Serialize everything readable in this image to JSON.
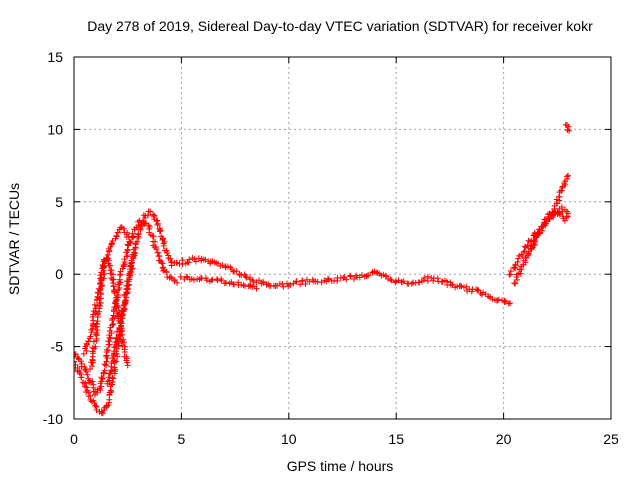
{
  "chart_data": {
    "type": "scatter",
    "title": "Day 278 of 2019, Sidereal Day-to-day VTEC variation (SDTVAR) for receiver kokr",
    "xlabel": "GPS time / hours",
    "ylabel": "SDTVAR / TECUs",
    "xlim": [
      0,
      25
    ],
    "ylim": [
      -10,
      15
    ],
    "xticks": [
      0,
      5,
      10,
      15,
      20,
      25
    ],
    "yticks": [
      -10,
      -5,
      0,
      5,
      10,
      15
    ],
    "grid": true,
    "marker": "+",
    "series": [
      {
        "name": "SDTVAR",
        "color": "#ff0000",
        "tracks": [
          {
            "x": [
              0.0,
              0.3,
              0.6,
              0.9,
              1.1,
              1.3,
              1.5,
              1.7,
              1.9,
              2.1,
              2.3,
              2.5,
              2.7,
              2.9,
              3.1,
              3.3,
              3.5,
              3.7,
              3.9,
              4.1,
              4.3,
              4.6,
              5.0,
              5.5,
              6.0,
              6.5,
              7.0,
              7.5,
              8.0,
              8.5,
              9.0,
              9.5,
              10.0,
              10.5,
              11.0,
              11.5,
              12.0,
              12.5,
              13.0,
              13.5,
              14.0,
              14.5,
              15.0,
              15.5,
              16.0,
              16.5,
              17.0,
              17.5,
              18.0,
              18.5,
              19.0,
              19.5,
              20.0,
              20.3
            ],
            "y": [
              -6.0,
              -7.0,
              -8.0,
              -8.8,
              -9.4,
              -9.6,
              -9.2,
              -8.2,
              -6.5,
              -4.5,
              -2.5,
              -0.8,
              0.8,
              2.0,
              3.2,
              4.0,
              4.3,
              4.1,
              3.5,
              2.6,
              1.5,
              0.6,
              0.8,
              1.0,
              1.0,
              0.8,
              0.6,
              0.2,
              -0.2,
              -0.5,
              -0.7,
              -0.8,
              -0.7,
              -0.6,
              -0.5,
              -0.5,
              -0.4,
              -0.3,
              -0.2,
              -0.1,
              0.1,
              -0.2,
              -0.5,
              -0.6,
              -0.5,
              -0.3,
              -0.4,
              -0.7,
              -0.9,
              -1.1,
              -1.3,
              -1.6,
              -1.9,
              -2.0
            ]
          },
          {
            "x": [
              0.0,
              0.4,
              0.8,
              1.0,
              1.2,
              1.4,
              1.6,
              1.8,
              2.0,
              2.2,
              2.4,
              2.6,
              2.8,
              3.0,
              3.2,
              3.4,
              3.6,
              3.8,
              4.0,
              4.2,
              4.5,
              4.8
            ],
            "y": [
              -5.5,
              -6.3,
              -7.5,
              -8.3,
              -8.0,
              -6.8,
              -5.0,
              -3.2,
              -1.5,
              0.0,
              1.2,
              2.2,
              3.0,
              3.5,
              3.7,
              3.4,
              2.8,
              1.8,
              0.9,
              0.2,
              -0.3,
              -0.6
            ]
          },
          {
            "x": [
              0.5,
              0.7,
              0.9,
              1.1,
              1.3,
              1.5,
              1.7,
              1.9,
              2.1,
              2.3,
              2.5
            ],
            "y": [
              -5.5,
              -4.5,
              -3.2,
              -1.5,
              0.3,
              1.2,
              0.5,
              -1.0,
              -3.0,
              -5.0,
              -6.3
            ]
          },
          {
            "x": [
              0.8,
              1.0,
              1.2,
              1.4,
              1.6,
              1.8,
              2.0,
              2.2,
              2.4,
              2.6
            ],
            "y": [
              -6.5,
              -4.5,
              -2.0,
              0.5,
              1.5,
              2.2,
              2.8,
              3.2,
              3.0,
              2.2
            ]
          },
          {
            "x": [
              1.6,
              1.8,
              2.0,
              2.2,
              2.4,
              2.6,
              2.8
            ],
            "y": [
              -7.5,
              -6.0,
              -4.5,
              -3.0,
              -1.5,
              0.0,
              1.5
            ]
          },
          {
            "x": [
              5.0,
              5.5,
              6.0,
              6.5,
              7.0,
              7.5,
              8.0,
              8.5
            ],
            "y": [
              -0.3,
              -0.3,
              -0.4,
              -0.4,
              -0.5,
              -0.6,
              -0.7,
              -1.0
            ]
          },
          {
            "x": [
              20.3,
              20.6,
              20.9,
              21.2,
              21.5,
              21.8,
              22.1,
              22.4,
              22.7,
              23.0
            ],
            "y": [
              0.0,
              0.8,
              1.5,
              2.2,
              2.8,
              3.2,
              3.8,
              4.5,
              5.8,
              6.8
            ]
          },
          {
            "x": [
              20.5,
              20.8,
              21.1,
              21.4,
              21.7,
              22.0,
              22.3,
              22.6,
              22.9,
              23.0
            ],
            "y": [
              -0.6,
              0.2,
              1.2,
              2.2,
              3.0,
              3.8,
              4.3,
              4.2,
              3.8,
              4.0
            ]
          },
          {
            "x": [
              21.2,
              21.5,
              21.8,
              22.1,
              22.4,
              22.7,
              23.0
            ],
            "y": [
              1.5,
              2.5,
              3.2,
              3.8,
              4.2,
              4.5,
              4.2
            ]
          },
          {
            "x": [
              22.9,
              22.95,
              23.0,
              23.05
            ],
            "y": [
              10.4,
              10.2,
              10.1,
              9.9
            ]
          }
        ]
      }
    ]
  }
}
